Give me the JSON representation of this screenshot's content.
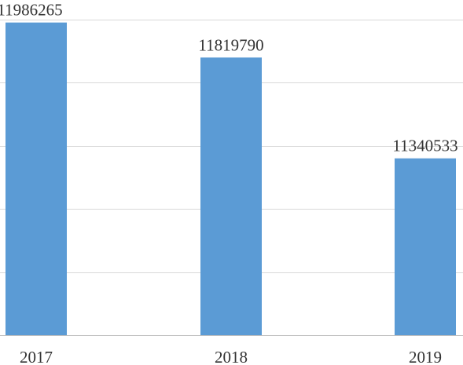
{
  "chart_data": {
    "type": "bar",
    "title": "",
    "xlabel": "",
    "ylabel": "",
    "categories": [
      "2017",
      "2018",
      "2019"
    ],
    "values": [
      11986265,
      11819790,
      11340533
    ],
    "data_labels": [
      "11986265",
      "11819790",
      "11340533"
    ],
    "ylim": [
      10500000,
      12000000
    ],
    "grid": true,
    "legend": "none",
    "colors": {
      "bar": "#5b9bd5",
      "grid": "#d9d9d9",
      "axis": "#bfbfbf",
      "text": "#333333"
    }
  }
}
